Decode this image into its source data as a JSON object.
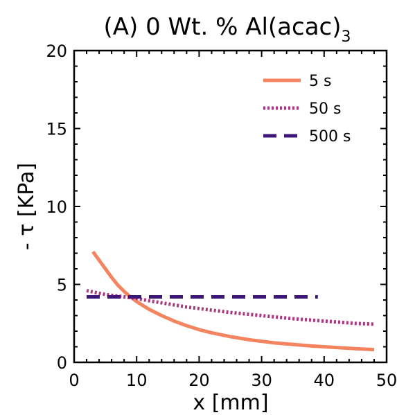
{
  "chart_data": {
    "type": "line",
    "title": "(A) 0 Wt. % Al(acac)",
    "title_subscript": "3",
    "xlabel": "x [mm]",
    "ylabel": "- τ [KPa]",
    "xlim": [
      0,
      50
    ],
    "ylim": [
      0,
      20
    ],
    "xticks": [
      "0",
      "10",
      "20",
      "30",
      "40",
      "50"
    ],
    "yticks": [
      "0",
      "5",
      "10",
      "15",
      "20"
    ],
    "grid": false,
    "legend_position": "top-right",
    "series": [
      {
        "name": "5 s",
        "color": "#f4845f",
        "style": "solid",
        "x": [
          3,
          4,
          5,
          6,
          7,
          8,
          9,
          10,
          12,
          14,
          16,
          18,
          20,
          22,
          25,
          28,
          30,
          32,
          35,
          38,
          40,
          42,
          45,
          48
        ],
        "y": [
          7.1,
          6.55,
          6.0,
          5.45,
          4.95,
          4.55,
          4.2,
          3.9,
          3.4,
          3.0,
          2.65,
          2.35,
          2.1,
          1.9,
          1.65,
          1.45,
          1.35,
          1.25,
          1.15,
          1.05,
          1.0,
          0.95,
          0.88,
          0.82
        ]
      },
      {
        "name": "50 s",
        "color": "#a8387f",
        "style": "dotted",
        "x": [
          2,
          5,
          8,
          10,
          12,
          15,
          18,
          20,
          25,
          30,
          35,
          40,
          45,
          48
        ],
        "y": [
          4.6,
          4.35,
          4.2,
          4.1,
          3.95,
          3.75,
          3.55,
          3.45,
          3.2,
          3.0,
          2.8,
          2.65,
          2.5,
          2.45
        ]
      },
      {
        "name": "500 s",
        "color": "#3d1778",
        "style": "dashed",
        "x": [
          2,
          5,
          10,
          15,
          20,
          25,
          30,
          35,
          39
        ],
        "y": [
          4.2,
          4.2,
          4.2,
          4.2,
          4.2,
          4.2,
          4.2,
          4.2,
          4.2
        ]
      }
    ]
  }
}
